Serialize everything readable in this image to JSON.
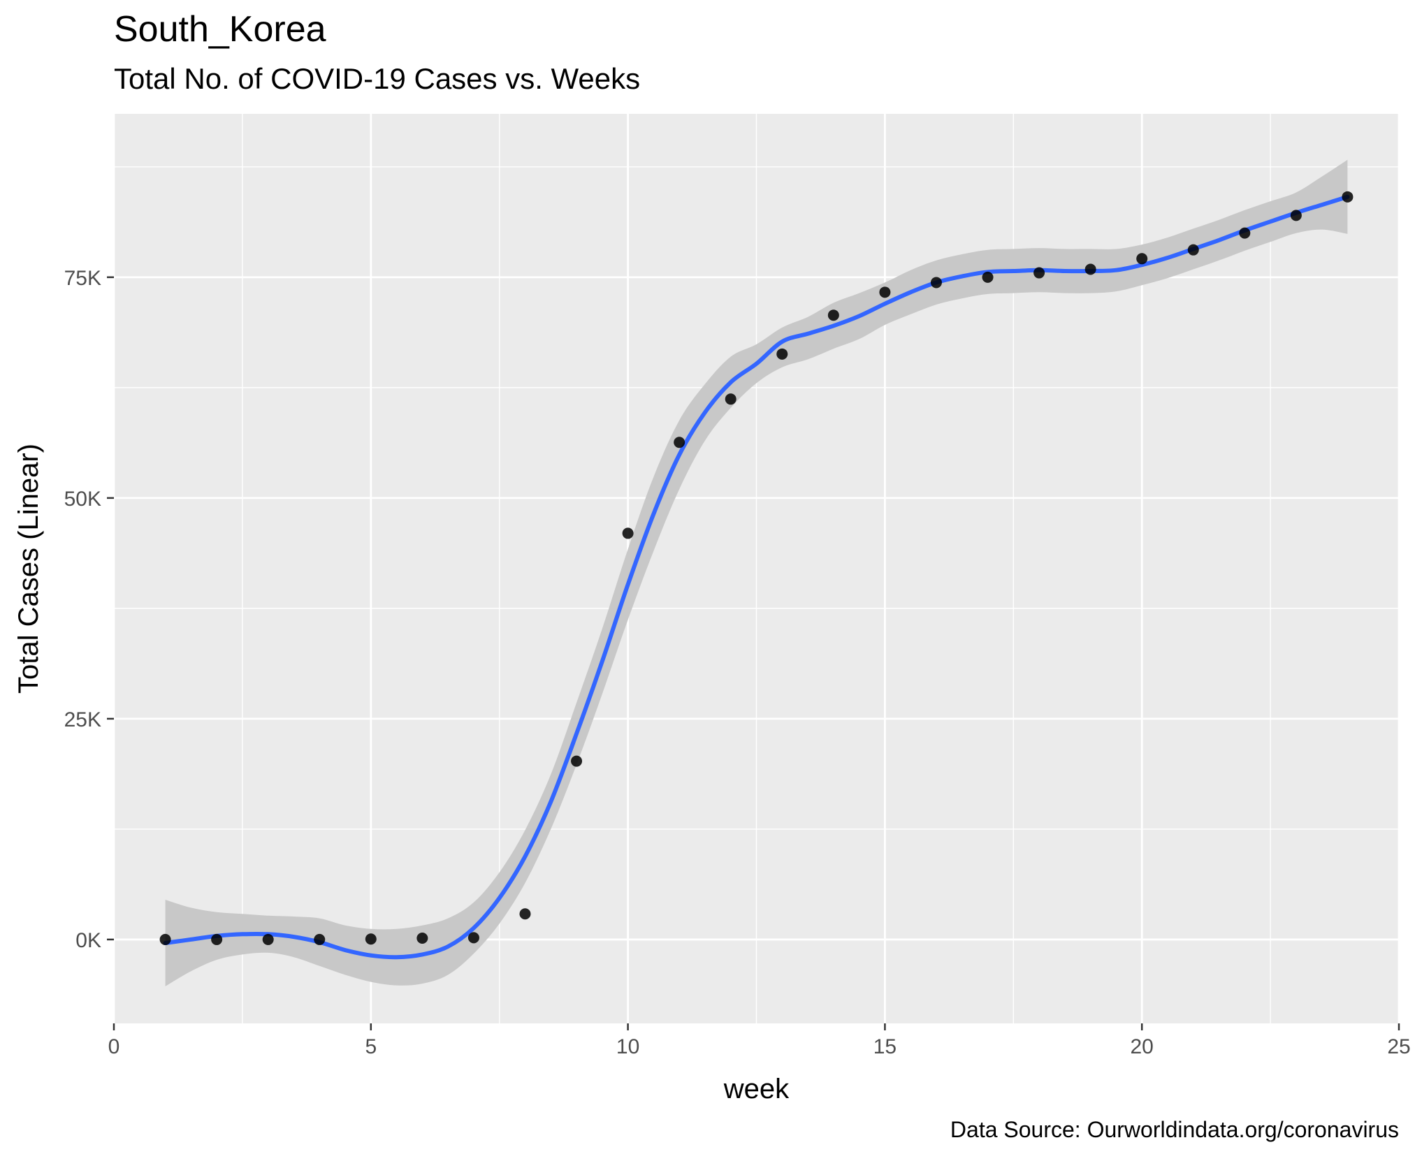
{
  "chart_data": {
    "type": "scatter",
    "title": "South_Korea",
    "subtitle": "Total No. of COVID-19 Cases vs. Weeks",
    "xlabel": "week",
    "ylabel": "Total Cases (Linear)",
    "caption": "Data Source: Ourworldindata.org/coronavirus",
    "xlim": [
      0,
      25
    ],
    "ylim": [
      -9500,
      93500
    ],
    "x_ticks": [
      0,
      5,
      10,
      15,
      20,
      25
    ],
    "x_tick_labels": [
      "0",
      "5",
      "10",
      "15",
      "20",
      "25"
    ],
    "y_ticks": [
      0,
      25000,
      50000,
      75000
    ],
    "y_tick_labels": [
      "0K",
      "25K",
      "50K",
      "75K"
    ],
    "grid": true,
    "series": [
      {
        "kind": "points",
        "color": "#000000",
        "x": [
          1,
          2,
          3,
          4,
          5,
          6,
          7,
          8,
          9,
          10,
          11,
          12,
          13,
          14,
          15,
          16,
          17,
          18,
          19,
          20,
          21,
          22,
          23,
          24
        ],
        "y": [
          0,
          0,
          0,
          0,
          50,
          150,
          200,
          2900,
          20200,
          46000,
          56300,
          61200,
          66300,
          70700,
          73300,
          74400,
          75000,
          75500,
          75900,
          77100,
          78100,
          80000,
          82000,
          84100
        ]
      },
      {
        "kind": "smooth",
        "color": "#3366FF",
        "band_color": "#C8C8C8",
        "x": [
          1,
          1.5,
          2,
          2.5,
          3,
          3.5,
          4,
          4.5,
          5,
          5.5,
          6,
          6.5,
          7,
          7.5,
          8,
          8.5,
          9,
          9.5,
          10,
          10.5,
          11,
          11.5,
          12,
          12.5,
          13,
          13.5,
          14,
          14.5,
          15,
          15.5,
          16,
          16.5,
          17,
          17.5,
          18,
          18.5,
          19,
          19.5,
          20,
          20.5,
          21,
          21.5,
          22,
          22.5,
          23,
          23.5,
          24
        ],
        "y": [
          -400,
          0,
          400,
          600,
          600,
          300,
          -300,
          -1200,
          -1800,
          -2000,
          -1700,
          -800,
          1300,
          4700,
          9400,
          15600,
          23300,
          31500,
          40200,
          48200,
          54900,
          59700,
          63100,
          65200,
          67700,
          68600,
          69500,
          70600,
          72000,
          73300,
          74400,
          75100,
          75600,
          75700,
          75800,
          75700,
          75700,
          75800,
          76400,
          77200,
          78200,
          79200,
          80300,
          81300,
          82300,
          83200,
          84100
        ],
        "ci_lower": [
          -5300,
          -3600,
          -2300,
          -1700,
          -1500,
          -2000,
          -3000,
          -4000,
          -4800,
          -5200,
          -5000,
          -4000,
          -1600,
          1800,
          6400,
          12500,
          19800,
          27800,
          36200,
          44000,
          51000,
          56500,
          60200,
          63000,
          64800,
          65700,
          66900,
          68000,
          69600,
          70800,
          71900,
          72600,
          73100,
          73200,
          73300,
          73200,
          73200,
          73400,
          74100,
          74900,
          75900,
          76900,
          78000,
          79000,
          80000,
          80400,
          79900
        ],
        "ci_upper": [
          4500,
          3600,
          3100,
          2900,
          2700,
          2600,
          2400,
          1600,
          1200,
          1200,
          1600,
          2400,
          4200,
          7600,
          12400,
          18700,
          26800,
          35200,
          44200,
          52400,
          58800,
          62900,
          66000,
          67400,
          69300,
          70500,
          72100,
          73200,
          74400,
          75800,
          76900,
          77600,
          78100,
          78200,
          78300,
          78200,
          78200,
          78200,
          78700,
          79500,
          80500,
          81500,
          82600,
          83600,
          84600,
          86400,
          88300
        ]
      }
    ]
  }
}
